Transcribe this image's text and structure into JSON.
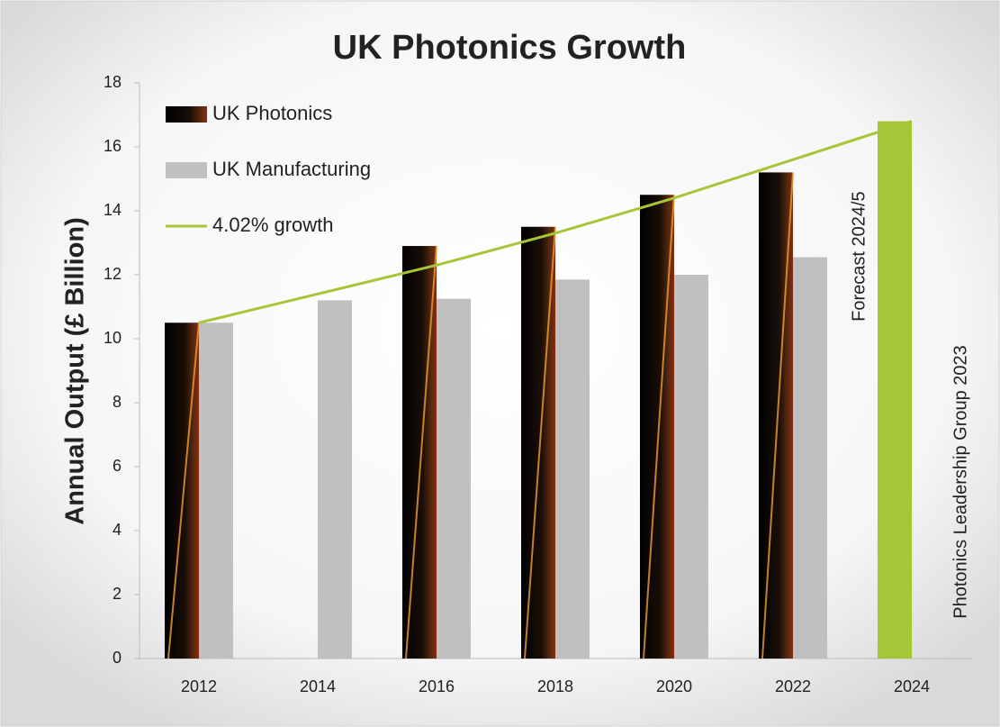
{
  "chart_data": {
    "type": "bar",
    "title": "UK Photonics Growth",
    "y_label": "Annual Output (£ Billion)",
    "annotation": "Forecast 2024/5",
    "source": "Photonics Leadership Group 2023",
    "categories": [
      "2012",
      "2014",
      "2016",
      "2018",
      "2020",
      "2022",
      "2024"
    ],
    "series": [
      {
        "name": "UK Photonics",
        "type": "bar",
        "color": "#120a06",
        "colors": [
          "#120a06",
          "#120a06",
          "#120a06",
          "#120a06",
          "#120a06",
          "#120a06",
          "#a6c637"
        ],
        "values": [
          10.5,
          null,
          12.9,
          13.5,
          14.5,
          15.2,
          16.8
        ]
      },
      {
        "name": "UK Manufacturing",
        "type": "bar",
        "color": "#c0c0c0",
        "values": [
          10.5,
          11.2,
          11.25,
          11.85,
          12.0,
          12.55,
          null
        ]
      },
      {
        "name": "4.02% growth",
        "type": "line",
        "color": "#a6c637",
        "values": [
          10.5,
          11.4,
          12.3,
          13.3,
          14.4,
          15.6,
          16.8
        ]
      }
    ],
    "ylim": [
      0,
      18
    ],
    "yticks": [
      0,
      2,
      4,
      6,
      8,
      10,
      12,
      14,
      16,
      18
    ],
    "legend": "top-left",
    "grid": false
  }
}
